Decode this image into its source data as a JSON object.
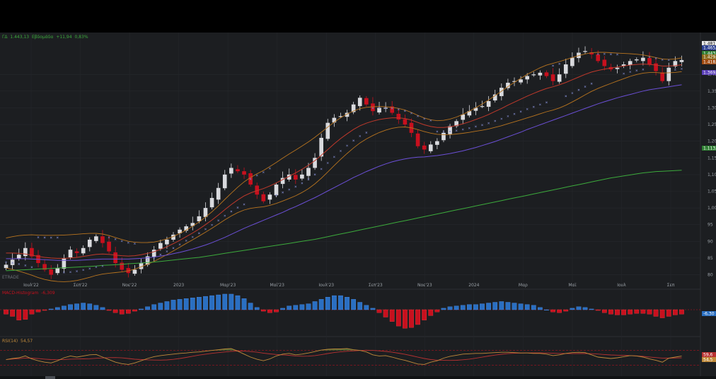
{
  "header": {
    "symbol": "ΓΔ",
    "last": "1.443,13",
    "period": "Εβδομάδα",
    "change": "+11,94",
    "change_pct": "0,83%"
  },
  "watermark": "ETRADE",
  "colors": {
    "up": "#d9dade",
    "down": "#c8101e",
    "bb": "#b8741f",
    "ma_red": "#c0392b",
    "ma_purple": "#6b4fd6",
    "ma_green": "#3caa3c",
    "psar": "#7b84c4",
    "macd_pos": "#2a6fc2",
    "macd_neg": "#c8101e",
    "rsi": "#c08a3a",
    "rsi_ma": "#b83232"
  },
  "price_axis": {
    "ticks": [
      "1,40",
      "1,35",
      "1,30",
      "1,25",
      "1,20",
      "1,15",
      "1,10",
      "1,05",
      "1,00",
      "95",
      "90",
      "85",
      "80"
    ],
    "badges": [
      {
        "label": "1.481",
        "color": "#e8e8e8"
      },
      {
        "label": "1.465,1",
        "color": "#2b3f8f"
      },
      {
        "label": "1.443,1",
        "color": "#2e7d32"
      },
      {
        "label": "1.429,4",
        "color": "#8a6a1a"
      },
      {
        "label": "1.418,3",
        "color": "#a04a10"
      },
      {
        "label": "1.369,0",
        "color": "#5a3fb8"
      },
      {
        "label": "1.113,2",
        "color": "#2e7d32"
      }
    ]
  },
  "time_axis": [
    "Ιουλ'22",
    "Σεπ'22",
    "Νοε'22",
    "2023",
    "Μαρ'23",
    "Μαϊ'23",
    "Ιουλ'23",
    "Σεπ'23",
    "Νοε'23",
    "2024",
    "Μαρ",
    "Μαϊ",
    "Ιουλ",
    "Σεπ"
  ],
  "macd": {
    "label": "MACD-Histogram",
    "value": "-6,309",
    "badge": "-6,30"
  },
  "rsi": {
    "label": "RSI(14)",
    "value": "54,57",
    "badges": [
      "59,6",
      "54,5"
    ]
  },
  "chart_data": {
    "type": "line",
    "title": "ΓΔ",
    "x_unit": "weeks (Jun 2022 – Sep 2024)",
    "ylim": [
      780,
      1500
    ],
    "close": [
      830,
      845,
      860,
      880,
      855,
      835,
      815,
      800,
      820,
      850,
      875,
      865,
      880,
      905,
      915,
      895,
      870,
      835,
      815,
      805,
      815,
      835,
      855,
      875,
      895,
      905,
      920,
      935,
      945,
      955,
      975,
      1000,
      1030,
      1060,
      1100,
      1120,
      1110,
      1100,
      1070,
      1040,
      1020,
      1040,
      1070,
      1090,
      1100,
      1085,
      1100,
      1120,
      1150,
      1210,
      1255,
      1270,
      1275,
      1285,
      1310,
      1330,
      1310,
      1290,
      1300,
      1300,
      1285,
      1265,
      1250,
      1225,
      1185,
      1175,
      1190,
      1200,
      1225,
      1245,
      1260,
      1280,
      1290,
      1300,
      1305,
      1320,
      1340,
      1360,
      1375,
      1380,
      1385,
      1395,
      1400,
      1405,
      1395,
      1380,
      1400,
      1430,
      1450,
      1465,
      1470,
      1460,
      1440,
      1425,
      1415,
      1420,
      1430,
      1440,
      1445,
      1450,
      1430,
      1410,
      1380,
      1420,
      1440,
      1443
    ],
    "ma_red": [
      865,
      865,
      864,
      862,
      859,
      855,
      852,
      850,
      849,
      849,
      850,
      852,
      855,
      858,
      861,
      862,
      861,
      859,
      857,
      856,
      857,
      860,
      864,
      869,
      876,
      884,
      893,
      903,
      914,
      925,
      937,
      950,
      964,
      979,
      995,
      1010,
      1024,
      1036,
      1045,
      1052,
      1058,
      1066,
      1075,
      1085,
      1095,
      1105,
      1116,
      1128,
      1142,
      1158,
      1175,
      1192,
      1208,
      1222,
      1235,
      1246,
      1254,
      1260,
      1265,
      1268,
      1270,
      1270,
      1268,
      1263,
      1256,
      1249,
      1244,
      1241,
      1241,
      1243,
      1247,
      1252,
      1258,
      1265,
      1272,
      1280,
      1289,
      1298,
      1308,
      1317,
      1326,
      1335,
      1343,
      1351,
      1358,
      1363,
      1369,
      1376,
      1384,
      1392,
      1400,
      1407,
      1412,
      1416,
      1419,
      1422,
      1425,
      1428,
      1430,
      1431,
      1430,
      1428,
      1425,
      1425,
      1426,
      1429
    ],
    "ma_purple": [
      848,
      848,
      848,
      848,
      847,
      846,
      845,
      844,
      843,
      843,
      843,
      843,
      844,
      845,
      846,
      847,
      847,
      847,
      847,
      847,
      848,
      849,
      851,
      853,
      856,
      859,
      863,
      867,
      872,
      877,
      883,
      889,
      896,
      904,
      912,
      921,
      930,
      939,
      947,
      955,
      963,
      971,
      979,
      987,
      996,
      1004,
      1013,
      1022,
      1031,
      1041,
      1051,
      1061,
      1071,
      1081,
      1091,
      1100,
      1109,
      1117,
      1125,
      1132,
      1138,
      1143,
      1147,
      1150,
      1152,
      1153,
      1155,
      1157,
      1160,
      1163,
      1167,
      1171,
      1176,
      1181,
      1187,
      1193,
      1199,
      1206,
      1213,
      1220,
      1227,
      1235,
      1242,
      1249,
      1256,
      1263,
      1270,
      1277,
      1284,
      1291,
      1298,
      1305,
      1312,
      1318,
      1324,
      1330,
      1335,
      1340,
      1345,
      1350,
      1354,
      1357,
      1360,
      1363,
      1366,
      1369
    ],
    "ma_green": [
      812,
      813,
      814,
      815,
      816,
      817,
      818,
      819,
      820,
      821,
      822,
      823,
      824,
      825,
      826,
      828,
      829,
      830,
      831,
      833,
      834,
      835,
      837,
      838,
      840,
      842,
      844,
      846,
      848,
      850,
      852,
      855,
      858,
      861,
      864,
      867,
      870,
      873,
      876,
      879,
      882,
      885,
      888,
      891,
      894,
      897,
      900,
      903,
      906,
      910,
      914,
      918,
      922,
      926,
      930,
      934,
      938,
      942,
      946,
      950,
      954,
      958,
      962,
      966,
      970,
      974,
      978,
      982,
      986,
      990,
      994,
      998,
      1002,
      1006,
      1010,
      1014,
      1018,
      1022,
      1026,
      1030,
      1034,
      1038,
      1042,
      1046,
      1050,
      1054,
      1058,
      1062,
      1066,
      1070,
      1074,
      1078,
      1082,
      1086,
      1090,
      1093,
      1096,
      1099,
      1102,
      1105,
      1107,
      1109,
      1110,
      1111,
      1112,
      1113
    ],
    "macd_hist": [
      -6,
      -9,
      -14,
      -13,
      -6,
      -3,
      -1,
      1,
      3,
      5,
      7,
      8,
      9,
      8,
      6,
      3,
      -1,
      -4,
      -6,
      -5,
      -2,
      1,
      4,
      7,
      9,
      11,
      13,
      14,
      15,
      16,
      17,
      18,
      19,
      20,
      21,
      21,
      19,
      15,
      9,
      3,
      -2,
      -4,
      -3,
      2,
      5,
      6,
      7,
      8,
      11,
      14,
      17,
      19,
      19,
      17,
      14,
      10,
      6,
      2,
      -4,
      -10,
      -16,
      -22,
      -25,
      -24,
      -20,
      -14,
      -8,
      -3,
      2,
      4,
      5,
      6,
      7,
      7,
      8,
      9,
      10,
      11,
      10,
      9,
      8,
      7,
      6,
      3,
      0,
      -3,
      -4,
      -2,
      2,
      4,
      3,
      1,
      -1,
      -4,
      -6,
      -7,
      -7,
      -6,
      -5,
      -5,
      -6,
      -9,
      -11,
      -9,
      -7,
      -6
    ],
    "rsi": [
      45,
      48,
      50,
      55,
      47,
      42,
      38,
      36,
      42,
      50,
      55,
      52,
      55,
      58,
      59,
      52,
      45,
      38,
      34,
      32,
      36,
      42,
      48,
      53,
      56,
      58,
      60,
      62,
      63,
      65,
      66,
      68,
      70,
      72,
      74,
      75,
      68,
      60,
      52,
      46,
      42,
      47,
      55,
      60,
      62,
      58,
      60,
      63,
      67,
      71,
      73,
      74,
      74,
      75,
      72,
      70,
      66,
      58,
      55,
      56,
      52,
      47,
      43,
      38,
      33,
      32,
      38,
      42,
      49,
      54,
      57,
      60,
      61,
      62,
      62,
      63,
      64,
      65,
      65,
      64,
      63,
      63,
      62,
      62,
      60,
      56,
      58,
      62,
      64,
      65,
      64,
      58,
      52,
      50,
      48,
      50,
      53,
      56,
      55,
      52,
      47,
      43,
      38,
      49,
      52,
      54.57
    ]
  }
}
